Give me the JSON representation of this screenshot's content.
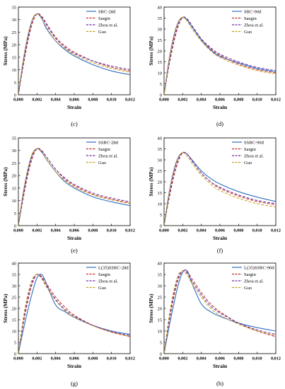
{
  "figure": {
    "colors": {
      "measured": "#2f6fc0",
      "sargin": "#c0282a",
      "zhou": "#6a2fa0",
      "guo": "#c8a020"
    }
  },
  "chart_data": [
    {
      "type": "line",
      "panel_label": "(c)",
      "xlabel": "Strain",
      "ylabel": "Stress (MPa)",
      "xlim": [
        0,
        0.012
      ],
      "ylim": [
        0,
        35
      ],
      "x_ticks": [
        0,
        0.002,
        0.004,
        0.006,
        0.008,
        0.01,
        0.012
      ],
      "x_tick_labels": [
        "0,000",
        "0,002",
        "0,004",
        "0,006",
        "0,008",
        "0,010",
        "0,012"
      ],
      "y_ticks": [
        0,
        5,
        10,
        15,
        20,
        25,
        30,
        35
      ],
      "y_tick_labels": [
        "0",
        "5",
        "10",
        "15",
        "20",
        "25",
        "30",
        "35"
      ],
      "legend_position": "top-right",
      "series": [
        {
          "name": "SRC-28d",
          "x": [
            0,
            0.0005,
            0.001,
            0.0015,
            0.002,
            0.0025,
            0.003,
            0.004,
            0.005,
            0.006,
            0.008,
            0.01,
            0.012
          ],
          "y": [
            0,
            13,
            23,
            30,
            32.3,
            30.5,
            26.5,
            21.5,
            18,
            15.5,
            12,
            9.5,
            8
          ]
        },
        {
          "name": "Sargin",
          "x": [
            0,
            0.0005,
            0.001,
            0.0015,
            0.002,
            0.0025,
            0.003,
            0.004,
            0.005,
            0.006,
            0.008,
            0.01,
            0.012
          ],
          "y": [
            0,
            11,
            21,
            28.5,
            32.3,
            31.3,
            28.5,
            23,
            19.5,
            17,
            13.5,
            11,
            9.5
          ]
        },
        {
          "name": "Zhou et al.",
          "x": [
            0,
            0.0005,
            0.001,
            0.0015,
            0.002,
            0.0025,
            0.003,
            0.004,
            0.005,
            0.006,
            0.008,
            0.01,
            0.012
          ],
          "y": [
            0,
            12,
            22,
            29.5,
            32.3,
            31,
            28,
            22.5,
            19,
            16.5,
            13.5,
            11.5,
            10
          ]
        },
        {
          "name": "Guo",
          "x": [
            0,
            0.0005,
            0.001,
            0.0015,
            0.002,
            0.0025,
            0.003,
            0.004,
            0.005,
            0.006,
            0.008,
            0.01,
            0.012
          ],
          "y": [
            0,
            13.5,
            23.5,
            30,
            32.3,
            30.3,
            27,
            21.5,
            18.5,
            16,
            12.8,
            10.5,
            9
          ]
        }
      ]
    },
    {
      "type": "line",
      "panel_label": "(d)",
      "xlabel": "Strain",
      "ylabel": "Stress (MPa)",
      "xlim": [
        0,
        0.012
      ],
      "ylim": [
        0,
        40
      ],
      "x_ticks": [
        0,
        0.002,
        0.004,
        0.006,
        0.008,
        0.01,
        0.012
      ],
      "x_tick_labels": [
        "0,000",
        "0,002",
        "0,004",
        "0,006",
        "0,008",
        "0,010",
        "0,012"
      ],
      "y_ticks": [
        0,
        5,
        10,
        15,
        20,
        25,
        30,
        35,
        40
      ],
      "y_tick_labels": [
        "0",
        "5",
        "10",
        "15",
        "20",
        "25",
        "30",
        "35",
        "40"
      ],
      "legend_position": "top-right",
      "series": [
        {
          "name": "SRC-90d",
          "x": [
            0,
            0.0005,
            0.001,
            0.0015,
            0.002,
            0.0025,
            0.003,
            0.004,
            0.005,
            0.006,
            0.008,
            0.01,
            0.012
          ],
          "y": [
            0,
            15,
            26,
            33,
            35.3,
            34,
            31,
            25,
            20.5,
            17.5,
            14.5,
            12,
            10.5
          ]
        },
        {
          "name": "Saegin",
          "x": [
            0,
            0.0005,
            0.001,
            0.0015,
            0.002,
            0.0025,
            0.003,
            0.004,
            0.005,
            0.006,
            0.008,
            0.01,
            0.012
          ],
          "y": [
            0,
            12.5,
            23,
            31,
            35.3,
            34.5,
            31.5,
            25.5,
            21,
            18,
            14,
            11.5,
            10
          ]
        },
        {
          "name": "Zhou et al.",
          "x": [
            0,
            0.0005,
            0.001,
            0.0015,
            0.002,
            0.0025,
            0.003,
            0.004,
            0.005,
            0.006,
            0.008,
            0.01,
            0.012
          ],
          "y": [
            0,
            13.5,
            24.5,
            32,
            35.3,
            34.5,
            31.5,
            25.5,
            21.5,
            18.5,
            15,
            12.5,
            11
          ]
        },
        {
          "name": "Guo",
          "x": [
            0,
            0.0005,
            0.001,
            0.0015,
            0.002,
            0.0025,
            0.003,
            0.004,
            0.005,
            0.006,
            0.008,
            0.01,
            0.012
          ],
          "y": [
            0,
            15,
            26,
            33,
            35.3,
            33.5,
            30,
            24.5,
            20,
            17,
            13.5,
            11,
            9.5
          ]
        }
      ]
    },
    {
      "type": "line",
      "panel_label": "(e)",
      "xlabel": "Strain",
      "ylabel": "Stress (MPa)",
      "xlim": [
        0,
        0.012
      ],
      "ylim": [
        0,
        35
      ],
      "x_ticks": [
        0,
        0.002,
        0.004,
        0.006,
        0.008,
        0.01,
        0.012
      ],
      "x_tick_labels": [
        "0,000",
        "0,002",
        "0,004",
        "0,006",
        "0,008",
        "0,010",
        "0,012"
      ],
      "y_ticks": [
        0,
        5,
        10,
        15,
        20,
        25,
        30,
        35
      ],
      "y_tick_labels": [
        "0",
        "5",
        "10",
        "15",
        "20",
        "25",
        "30",
        "35"
      ],
      "legend_position": "top-right",
      "series": [
        {
          "name": "SSRC-28d",
          "x": [
            0,
            0.0005,
            0.001,
            0.0015,
            0.002,
            0.0025,
            0.003,
            0.004,
            0.005,
            0.006,
            0.008,
            0.01,
            0.012
          ],
          "y": [
            0,
            12.5,
            22,
            28.5,
            30.7,
            29.5,
            26.5,
            21.5,
            17.5,
            15,
            11.5,
            9.5,
            8
          ]
        },
        {
          "name": "Sargin",
          "x": [
            0,
            0.0005,
            0.001,
            0.0015,
            0.002,
            0.0025,
            0.003,
            0.004,
            0.005,
            0.006,
            0.008,
            0.01,
            0.012
          ],
          "y": [
            0,
            10.5,
            20,
            27,
            30.7,
            30,
            27.5,
            22.5,
            18.5,
            16,
            12.5,
            10.5,
            9
          ]
        },
        {
          "name": "Zhou et al.",
          "x": [
            0,
            0.0005,
            0.001,
            0.0015,
            0.002,
            0.0025,
            0.003,
            0.004,
            0.005,
            0.006,
            0.008,
            0.01,
            0.012
          ],
          "y": [
            0,
            11.5,
            21,
            28,
            30.7,
            29.8,
            27.5,
            22.5,
            19,
            16.5,
            13,
            11,
            9.5
          ]
        },
        {
          "name": "Guo",
          "x": [
            0,
            0.0005,
            0.001,
            0.0015,
            0.002,
            0.0025,
            0.003,
            0.004,
            0.005,
            0.006,
            0.008,
            0.01,
            0.012
          ],
          "y": [
            0,
            13,
            22.5,
            28.8,
            30.7,
            29.2,
            26.5,
            21.5,
            18,
            15.5,
            12.3,
            10.3,
            8.8
          ]
        }
      ]
    },
    {
      "type": "line",
      "panel_label": "(f)",
      "xlabel": "Strain",
      "ylabel": "Stress (MPa)",
      "xlim": [
        0,
        0.012
      ],
      "ylim": [
        0,
        40
      ],
      "x_ticks": [
        0,
        0.002,
        0.004,
        0.006,
        0.008,
        0.01,
        0.012
      ],
      "x_tick_labels": [
        "0,000",
        "0,002",
        "0,004",
        "0,006",
        "0,008",
        "0,010",
        "0,012"
      ],
      "y_ticks": [
        0,
        5,
        10,
        15,
        20,
        25,
        30,
        35,
        40
      ],
      "y_tick_labels": [
        "0",
        "5",
        "10",
        "15",
        "20",
        "25",
        "30",
        "35",
        "40"
      ],
      "legend_position": "top-right",
      "series": [
        {
          "name": "SSRC-90d",
          "x": [
            0,
            0.0005,
            0.001,
            0.0015,
            0.002,
            0.0025,
            0.003,
            0.004,
            0.005,
            0.006,
            0.008,
            0.01,
            0.012
          ],
          "y": [
            0,
            14,
            24.5,
            31,
            33.3,
            32.5,
            30,
            25,
            21.5,
            19,
            15.5,
            13,
            11
          ]
        },
        {
          "name": "Sargin",
          "x": [
            0,
            0.0005,
            0.001,
            0.0015,
            0.002,
            0.0025,
            0.003,
            0.004,
            0.005,
            0.006,
            0.008,
            0.01,
            0.012
          ],
          "y": [
            0,
            11.5,
            21.5,
            29,
            33.3,
            32.5,
            29.5,
            24,
            20,
            17,
            13.5,
            11,
            9.5
          ]
        },
        {
          "name": "Zhou et al.",
          "x": [
            0,
            0.0005,
            0.001,
            0.0015,
            0.002,
            0.0025,
            0.003,
            0.004,
            0.005,
            0.006,
            0.008,
            0.01,
            0.012
          ],
          "y": [
            0,
            12.5,
            23,
            30,
            33.3,
            32.5,
            29.5,
            24,
            20,
            17.5,
            14,
            11.5,
            10
          ]
        },
        {
          "name": "Guo",
          "x": [
            0,
            0.0005,
            0.001,
            0.0015,
            0.002,
            0.0025,
            0.003,
            0.004,
            0.005,
            0.006,
            0.008,
            0.01,
            0.012
          ],
          "y": [
            0,
            14,
            24.5,
            31,
            33.3,
            31.5,
            28.5,
            23,
            19,
            16,
            12.5,
            10,
            8.5
          ]
        }
      ]
    },
    {
      "type": "line",
      "panel_label": "(g)",
      "xlabel": "Strain",
      "ylabel": "Stress (MPa)",
      "xlim": [
        0,
        0.012
      ],
      "ylim": [
        0,
        40
      ],
      "x_ticks": [
        0,
        0.002,
        0.004,
        0.006,
        0.008,
        0.01,
        0.012
      ],
      "x_tick_labels": [
        "0,000",
        "0,002",
        "0,004",
        "0,006",
        "0,008",
        "0,010",
        "0,012"
      ],
      "y_ticks": [
        0,
        5,
        10,
        15,
        20,
        25,
        30,
        35,
        40
      ],
      "y_tick_labels": [
        "0",
        "5",
        "10",
        "15",
        "20",
        "25",
        "30",
        "35",
        "40"
      ],
      "legend_position": "top-right",
      "series": [
        {
          "name": "L(35)SSRC-28d",
          "x": [
            0,
            0.0005,
            0.001,
            0.0015,
            0.002,
            0.0025,
            0.003,
            0.004,
            0.005,
            0.006,
            0.008,
            0.01,
            0.012
          ],
          "y": [
            0,
            10,
            19,
            27,
            33.5,
            35,
            31,
            21.5,
            18.5,
            16,
            12.5,
            10,
            8.5
          ]
        },
        {
          "name": "Sargin",
          "x": [
            0,
            0.0005,
            0.001,
            0.0015,
            0.002,
            0.0025,
            0.003,
            0.004,
            0.005,
            0.006,
            0.008,
            0.01,
            0.012
          ],
          "y": [
            0,
            12.5,
            23,
            31,
            35,
            34,
            31,
            25,
            20.5,
            17,
            12.5,
            9.5,
            7.5
          ]
        },
        {
          "name": "Zhou et al.",
          "x": [
            0,
            0.0005,
            0.001,
            0.0015,
            0.002,
            0.0025,
            0.003,
            0.004,
            0.005,
            0.006,
            0.008,
            0.01,
            0.012
          ],
          "y": [
            0,
            13.5,
            24.5,
            32,
            35,
            33.5,
            30,
            24,
            19.5,
            16.5,
            12.5,
            9.8,
            8
          ]
        },
        {
          "name": "Guo",
          "x": [
            0,
            0.0005,
            0.001,
            0.0015,
            0.002,
            0.0025,
            0.003,
            0.004,
            0.005,
            0.006,
            0.008,
            0.01,
            0.012
          ],
          "y": [
            0,
            15,
            26,
            33,
            35,
            33,
            29.5,
            23.5,
            19,
            16,
            12.3,
            9.5,
            7.5
          ]
        }
      ]
    },
    {
      "type": "line",
      "panel_label": "(h)",
      "xlabel": "Strain",
      "ylabel": "Stress (MPa)",
      "xlim": [
        0,
        0.012
      ],
      "ylim": [
        0,
        40
      ],
      "x_ticks": [
        0,
        0.002,
        0.004,
        0.006,
        0.008,
        0.01,
        0.012
      ],
      "x_tick_labels": [
        "0,000",
        "0,002",
        "0,004",
        "0,006",
        "0,008",
        "0,010",
        "0,012"
      ],
      "y_ticks": [
        0,
        5,
        10,
        15,
        20,
        25,
        30,
        35,
        40
      ],
      "y_tick_labels": [
        "0",
        "5",
        "10",
        "15",
        "20",
        "25",
        "30",
        "35",
        "40"
      ],
      "legend_position": "top-right",
      "series": [
        {
          "name": "L(35)SSRC-90d",
          "x": [
            0,
            0.0005,
            0.001,
            0.0015,
            0.002,
            0.0025,
            0.003,
            0.004,
            0.005,
            0.006,
            0.008,
            0.01,
            0.012
          ],
          "y": [
            0,
            11,
            21,
            30,
            36,
            36.5,
            31,
            22,
            18.5,
            16.5,
            13.5,
            11.5,
            10
          ]
        },
        {
          "name": "Sargin",
          "x": [
            0,
            0.0005,
            0.001,
            0.0015,
            0.002,
            0.0025,
            0.003,
            0.004,
            0.005,
            0.006,
            0.008,
            0.01,
            0.012
          ],
          "y": [
            0,
            13,
            24,
            32.5,
            36.5,
            36,
            33,
            27,
            22,
            18.5,
            13.5,
            10,
            7.5
          ]
        },
        {
          "name": "Zhou et al.",
          "x": [
            0,
            0.0005,
            0.001,
            0.0015,
            0.002,
            0.0025,
            0.003,
            0.004,
            0.005,
            0.006,
            0.008,
            0.01,
            0.012
          ],
          "y": [
            0,
            14,
            25.5,
            33.5,
            36.5,
            35.5,
            32,
            26,
            21,
            18,
            13.5,
            10.5,
            8.5
          ]
        },
        {
          "name": "Guo",
          "x": [
            0,
            0.0005,
            0.001,
            0.0015,
            0.002,
            0.0025,
            0.003,
            0.004,
            0.005,
            0.006,
            0.008,
            0.01,
            0.012
          ],
          "y": [
            0,
            15.5,
            27,
            34.5,
            36.5,
            34.5,
            31,
            25,
            20,
            17,
            13,
            10,
            8
          ]
        }
      ]
    }
  ]
}
